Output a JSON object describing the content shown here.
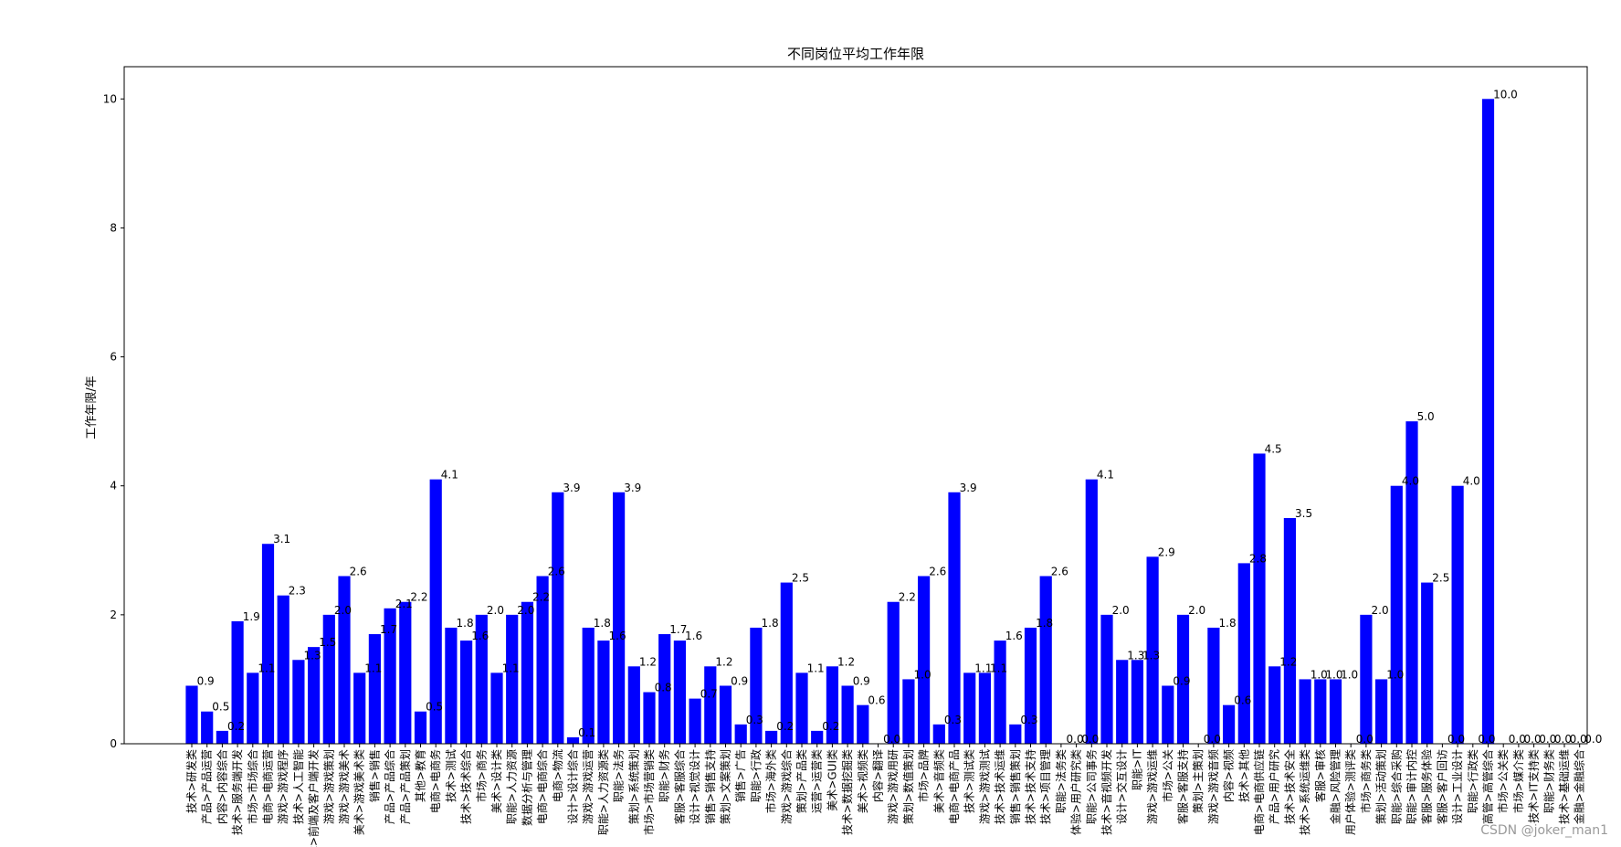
{
  "chart_data": {
    "type": "bar",
    "title": "不同岗位平均工作年限",
    "xlabel": "",
    "ylabel": "工作年限/年",
    "ylim": [
      0,
      10.5
    ],
    "yticks": [
      0,
      2,
      4,
      6,
      8,
      10
    ],
    "bar_color": "#0000ff",
    "grid": false,
    "categories": [
      "技术>研发类",
      "产品>产品运营",
      "内容>内容综合",
      "技术>服务端开发",
      "市场>市场综合",
      "电商>电商运营",
      "游戏>游戏程序",
      "技术>人工智能",
      "技术>前端及客户端开发",
      "游戏>游戏策划",
      "游戏>游戏美术",
      "美术>游戏美术类",
      "销售>销售",
      "产品>产品综合",
      "产品>产品策划",
      "其他>教育",
      "电商>电商务",
      "技术>测试",
      "技术>技术综合",
      "市场>商务",
      "美术>设计类",
      "职能>人力资源",
      "数据分析与管理",
      "电商>电商综合",
      "电商>物流",
      "设计>设计综合",
      "游戏>游戏运营",
      "职能>人力资源类",
      "职能>法务",
      "策划>系统策划",
      "市场>市场营销类",
      "职能>财务",
      "客服>客服综合",
      "设计>视觉设计",
      "销售>销售支持",
      "策划>文案策划",
      "销售>广告",
      "职能>行政",
      "市场>海外类",
      "游戏>游戏综合",
      "策划>产品类",
      "运营>运营类",
      "美术>GUI类",
      "技术>数据挖掘类",
      "美术>视频类",
      "内容>翻译",
      "游戏>游戏用研",
      "策划>数值策划",
      "市场>品牌",
      "美术>音频类",
      "电商>电商产品",
      "技术>测试类",
      "游戏>游戏测试",
      "技术>技术运维",
      "销售>销售策划",
      "技术>技术支持",
      "技术>项目管理",
      "职能>法务类",
      "体验>用户研究类",
      "职能>公司事务",
      "技术>音视频开发",
      "设计>交互设计",
      "职能>IT",
      "游戏>游戏运维",
      "市场>公关",
      "客服>客服支持",
      "策划>主策划",
      "游戏>游戏音频",
      "内容>视频",
      "技术>其他",
      "电商>电商供应链",
      "产品>用户研究",
      "技术>技术安全",
      "技术>系统运维类",
      "客服>审核",
      "金融>风险管理",
      "用户体验>测评类",
      "市场>商务类",
      "策划>活动策划",
      "职能>综合采购",
      "职能>审计内控",
      "客服>服务体验",
      "客服>客户回访",
      "设计>工业设计",
      "职能>行政类",
      "高管>高管综合",
      "市场>公关类",
      "市场>媒介类",
      "技术>IT支持类",
      "职能>财务类",
      "技术>基础运维",
      "金融>金融综合"
    ],
    "values": [
      0.9,
      0.5,
      0.2,
      1.9,
      1.1,
      3.1,
      2.3,
      1.3,
      1.5,
      2.0,
      2.6,
      1.1,
      1.7,
      2.1,
      2.2,
      0.5,
      4.1,
      1.8,
      1.6,
      2.0,
      1.1,
      2.0,
      2.2,
      2.6,
      3.9,
      0.1,
      1.8,
      1.6,
      3.9,
      1.2,
      0.8,
      1.7,
      1.6,
      0.7,
      1.2,
      0.9,
      0.3,
      1.8,
      0.2,
      2.5,
      1.1,
      0.2,
      1.2,
      0.9,
      0.6,
      0.0,
      2.2,
      1.0,
      2.6,
      0.3,
      3.9,
      1.1,
      1.1,
      1.6,
      0.3,
      1.8,
      2.6,
      0.0,
      0.0,
      4.1,
      2.0,
      1.3,
      1.3,
      2.9,
      0.9,
      2.0,
      0.0,
      1.8,
      0.6,
      2.8,
      4.5,
      1.2,
      3.5,
      1.0,
      1.0,
      1.0,
      0.0,
      2.0,
      1.0,
      4.0,
      5.0,
      2.5,
      0.0,
      4.0,
      0.0,
      10.0,
      0.0,
      0.0,
      0.0,
      0.0,
      0.0,
      0.0
    ]
  },
  "watermark": "CSDN @joker_man1"
}
